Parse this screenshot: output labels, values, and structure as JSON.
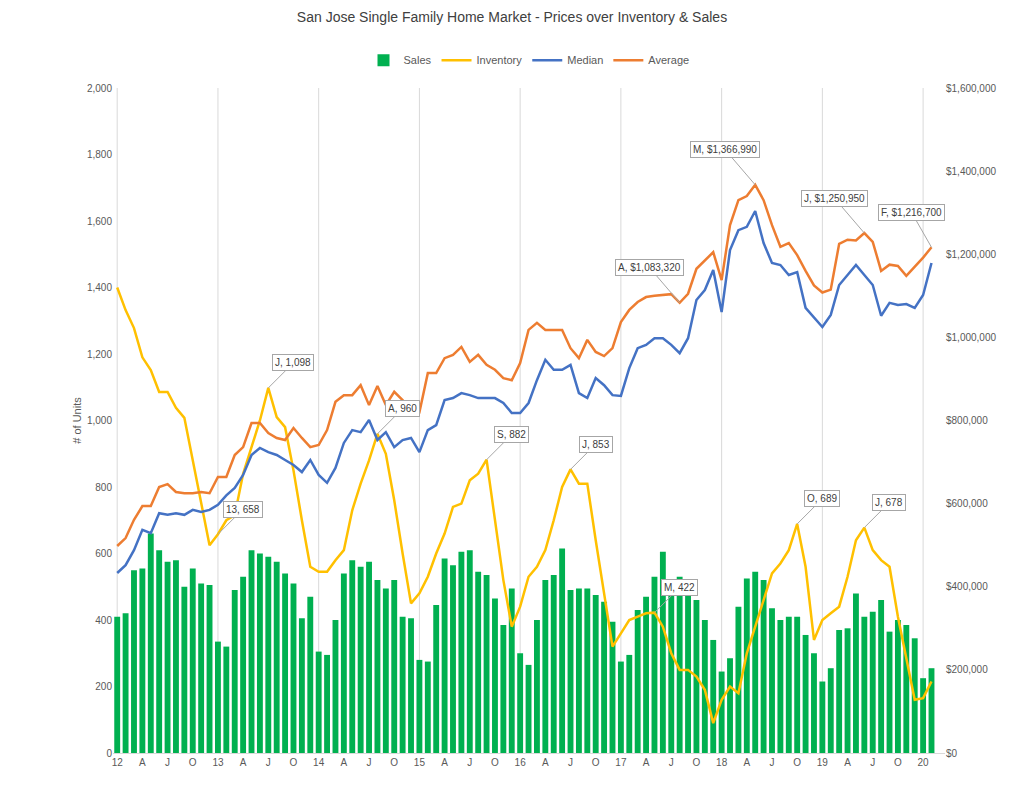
{
  "chart_data": {
    "type": "bar",
    "title": "San Jose Single Family Home Market - Prices over Inventory & Sales",
    "y_label": "# of Units",
    "categories": [
      "12",
      null,
      null,
      "A",
      null,
      null,
      "J",
      null,
      null,
      "O",
      null,
      null,
      "13",
      null,
      null,
      "A",
      null,
      null,
      "J",
      null,
      null,
      "O",
      null,
      null,
      "14",
      null,
      null,
      "A",
      null,
      null,
      "J",
      null,
      null,
      "O",
      null,
      null,
      "15",
      null,
      null,
      "A",
      null,
      null,
      "J",
      null,
      null,
      "O",
      null,
      null,
      "16",
      null,
      null,
      "A",
      null,
      null,
      "J",
      null,
      null,
      "O",
      null,
      null,
      "17",
      null,
      null,
      "A",
      null,
      null,
      "J",
      null,
      null,
      "O",
      null,
      null,
      "18",
      null,
      null,
      "A",
      null,
      null,
      "J",
      null,
      null,
      "O",
      null,
      null,
      "19",
      null,
      null,
      "A",
      null,
      null,
      "J",
      null,
      null,
      "O",
      null,
      null,
      "20",
      null
    ],
    "series": [
      {
        "name": "Sales",
        "type": "bar",
        "color": "#00b050",
        "axis": "y",
        "values": [
          410,
          420,
          550,
          555,
          660,
          610,
          575,
          580,
          500,
          555,
          510,
          505,
          335,
          320,
          490,
          530,
          610,
          600,
          590,
          575,
          540,
          510,
          405,
          470,
          305,
          295,
          400,
          540,
          580,
          560,
          575,
          520,
          495,
          520,
          410,
          405,
          280,
          275,
          445,
          585,
          565,
          605,
          610,
          545,
          535,
          465,
          385,
          495,
          300,
          265,
          400,
          520,
          535,
          615,
          490,
          495,
          495,
          475,
          455,
          395,
          275,
          295,
          430,
          470,
          530,
          605,
          520,
          530,
          480,
          460,
          400,
          340,
          245,
          285,
          440,
          525,
          545,
          520,
          435,
          400,
          410,
          410,
          355,
          300,
          215,
          255,
          370,
          375,
          480,
          410,
          425,
          460,
          365,
          400,
          385,
          345,
          225,
          255
        ]
      },
      {
        "name": "Inventory",
        "type": "line",
        "color": "#ffc000",
        "axis": "y",
        "line_style": "solid",
        "values": [
          1400,
          1332,
          1278,
          1190,
          1152,
          1086,
          1086,
          1038,
          1008,
          881,
          761,
          625,
          658,
          700,
          715,
          840,
          920,
          1000,
          1098,
          1010,
          980,
          850,
          700,
          560,
          545,
          545,
          580,
          610,
          730,
          810,
          880,
          960,
          900,
          760,
          600,
          450,
          480,
          530,
          600,
          660,
          740,
          750,
          820,
          840,
          882,
          700,
          520,
          380,
          440,
          530,
          560,
          610,
          700,
          800,
          853,
          810,
          810,
          640,
          480,
          320,
          360,
          400,
          410,
          420,
          422,
          380,
          300,
          250,
          250,
          230,
          190,
          90,
          160,
          200,
          180,
          300,
          380,
          460,
          540,
          570,
          610,
          689,
          560,
          340,
          400,
          420,
          440,
          530,
          640,
          678,
          610,
          580,
          560,
          410,
          280,
          160,
          165,
          215
        ]
      },
      {
        "name": "Median",
        "type": "line",
        "color": "#4472c4",
        "axis": "y2",
        "line_style": "solid",
        "values": [
          433000,
          452000,
          488000,
          537000,
          529000,
          577000,
          573000,
          577000,
          573000,
          585000,
          580000,
          585000,
          597000,
          620000,
          638000,
          669000,
          717000,
          734000,
          724000,
          717000,
          705000,
          693000,
          676000,
          705000,
          669000,
          650000,
          686000,
          746000,
          777000,
          772000,
          801000,
          753000,
          772000,
          736000,
          753000,
          758000,
          724000,
          777000,
          789000,
          849000,
          854000,
          866000,
          861000,
          854000,
          854000,
          854000,
          842000,
          818000,
          818000,
          842000,
          897000,
          946000,
          922000,
          922000,
          934000,
          866000,
          854000,
          902000,
          885000,
          861000,
          859000,
          926000,
          974000,
          982000,
          998000,
          998000,
          982000,
          962000,
          998000,
          1090000,
          1114000,
          1162000,
          1061000,
          1210000,
          1258000,
          1266000,
          1304000,
          1227000,
          1179000,
          1174000,
          1150000,
          1157000,
          1071000,
          1047000,
          1025000,
          1054000,
          1126000,
          1150000,
          1174000,
          1150000,
          1126000,
          1052000,
          1083000,
          1078000,
          1080000,
          1071000,
          1102000,
          1179000
        ]
      },
      {
        "name": "Average",
        "type": "line",
        "color": "#ed7d31",
        "axis": "y2",
        "line_style": "solid",
        "values": [
          498000,
          517000,
          561000,
          594000,
          594000,
          640000,
          647000,
          628000,
          625000,
          625000,
          628000,
          625000,
          664000,
          664000,
          717000,
          736000,
          794000,
          794000,
          770000,
          758000,
          753000,
          782000,
          758000,
          736000,
          741000,
          777000,
          845000,
          861000,
          861000,
          885000,
          837000,
          883000,
          837000,
          869000,
          849000,
          825000,
          820000,
          914000,
          914000,
          950000,
          958000,
          977000,
          941000,
          958000,
          934000,
          922000,
          902000,
          897000,
          938000,
          1018000,
          1035000,
          1018000,
          1018000,
          1018000,
          974000,
          950000,
          994000,
          965000,
          955000,
          974000,
          1037000,
          1066000,
          1085000,
          1097000,
          1100000,
          1102000,
          1104000,
          1083320,
          1105000,
          1165000,
          1185000,
          1205000,
          1138000,
          1270000,
          1330000,
          1340000,
          1366990,
          1330000,
          1270000,
          1218000,
          1227000,
          1198000,
          1160000,
          1125000,
          1108000,
          1115000,
          1225000,
          1235000,
          1233000,
          1250950,
          1230000,
          1160000,
          1175000,
          1172000,
          1148000,
          1170000,
          1192000,
          1216700
        ]
      }
    ],
    "ylim": [
      0,
      2000
    ],
    "yticks": [
      0,
      200,
      400,
      600,
      800,
      {
        "value": 1000,
        "label": "1,000"
      },
      {
        "value": 1200,
        "label": "1,200"
      },
      {
        "value": 1400,
        "label": "1,400"
      },
      {
        "value": 1600,
        "label": "1,600"
      },
      {
        "value": 1800,
        "label": "1,800"
      },
      {
        "value": 2000,
        "label": "2,000"
      }
    ],
    "y2lim": [
      0,
      1600000
    ],
    "y2ticks": [
      {
        "value": 0,
        "label": "$0"
      },
      {
        "value": 200000,
        "label": "$200,000"
      },
      {
        "value": 400000,
        "label": "$400,000"
      },
      {
        "value": 600000,
        "label": "$600,000"
      },
      {
        "value": 800000,
        "label": "$800,000"
      },
      {
        "value": 1000000,
        "label": "$1,000,000"
      },
      {
        "value": 1200000,
        "label": "$1,200,000"
      },
      {
        "value": 1400000,
        "label": "$1,400,000"
      },
      {
        "value": 1600000,
        "label": "$1,600,000"
      }
    ],
    "annotations": [
      {
        "text": "J, 1,098",
        "x": 18,
        "y": 1098,
        "axis": "y"
      },
      {
        "text": "13, 658",
        "x": 12,
        "y": 658,
        "axis": "y"
      },
      {
        "text": "A, 960",
        "x": 31,
        "y": 960,
        "axis": "y"
      },
      {
        "text": "S, 882",
        "x": 44,
        "y": 882,
        "axis": "y"
      },
      {
        "text": "J, 853",
        "x": 54,
        "y": 853,
        "axis": "y"
      },
      {
        "text": "M, 422",
        "x": 64,
        "y": 422,
        "axis": "y"
      },
      {
        "text": "O, 689",
        "x": 81,
        "y": 689,
        "axis": "y"
      },
      {
        "text": "J, 678",
        "x": 89,
        "y": 678,
        "axis": "y"
      },
      {
        "text": "A, $1,083,320",
        "x": 67,
        "y": 1083320,
        "axis": "y2"
      },
      {
        "text": "M, $1,366,990",
        "x": 76,
        "y": 1366990,
        "axis": "y2"
      },
      {
        "text": "J, $1,250,950",
        "x": 89,
        "y": 1250950,
        "axis": "y2"
      },
      {
        "text": "F, $1,216,700",
        "x": 97,
        "y": 1216700,
        "axis": "y2"
      }
    ],
    "legend": "top",
    "grid": "x"
  }
}
